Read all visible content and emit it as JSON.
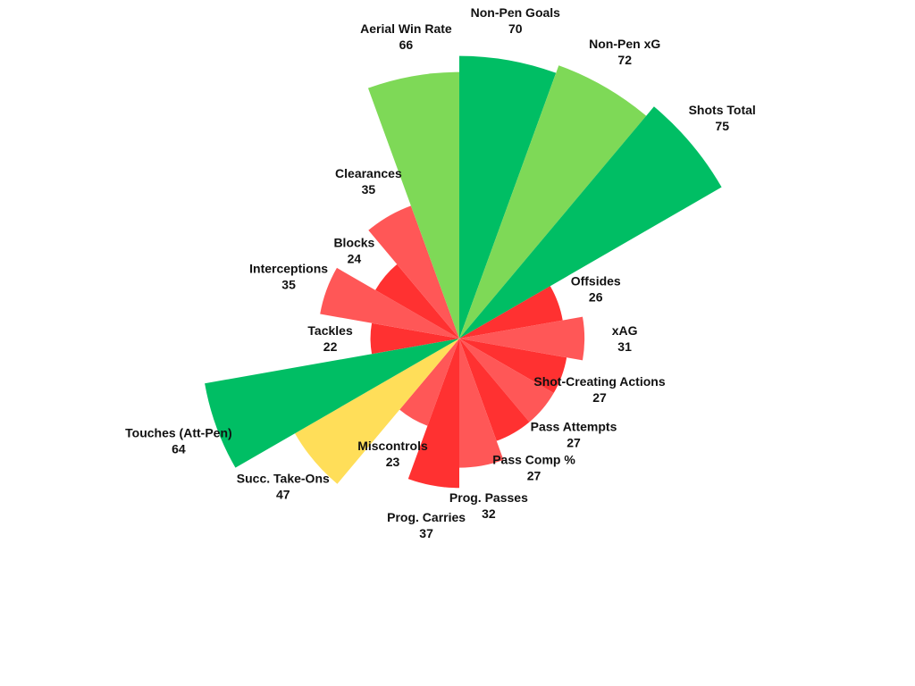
{
  "chart_data": {
    "type": "pie",
    "title": "",
    "categories": [
      "Non-Pen Goals",
      "Non-Pen xG",
      "Shots Total",
      "Offsides",
      "xAG",
      "Shot-Creating Actions",
      "Pass Attempts",
      "Pass Comp %",
      "Prog. Passes",
      "Prog. Carries",
      "Miscontrols",
      "Succ. Take-Ons",
      "Touches (Att-Pen)",
      "Tackles",
      "Interceptions",
      "Blocks",
      "Clearances",
      "Aerial Win Rate"
    ],
    "values": [
      70,
      72,
      75,
      26,
      31,
      27,
      27,
      27,
      32,
      37,
      23,
      47,
      64,
      22,
      35,
      24,
      35,
      66
    ],
    "colors": [
      "#00BE64",
      "#7ED957",
      "#00BE64",
      "#FF3131",
      "#FF5757",
      "#FF3131",
      "#FF5757",
      "#FF3131",
      "#FF5757",
      "#FF3131",
      "#FF5757",
      "#FFDE59",
      "#00BE64",
      "#FF3131",
      "#FF5757",
      "#FF3131",
      "#FF5757",
      "#7ED957"
    ],
    "slice_angle": "equal",
    "radius_encodes": "value",
    "start": "top",
    "direction": "clockwise"
  }
}
